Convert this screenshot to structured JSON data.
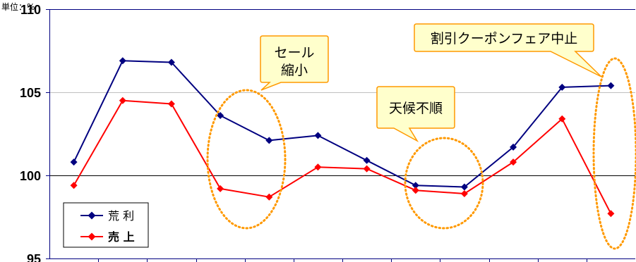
{
  "chart_data": {
    "type": "line",
    "unit_label": "単位：%",
    "x_count": 12,
    "ylim": [
      95,
      110
    ],
    "y_ticks": [
      110,
      105,
      100,
      95
    ],
    "reference_line": 100,
    "grid": true,
    "legend_position": "bottom-left",
    "series": [
      {
        "name": "荒 利",
        "color": "#000080",
        "marker": "diamond",
        "values": [
          100.8,
          106.9,
          106.8,
          103.6,
          102.1,
          102.4,
          100.9,
          99.4,
          99.3,
          101.7,
          105.3,
          105.4
        ]
      },
      {
        "name": "売 上",
        "color": "#ff0000",
        "marker": "diamond",
        "values": [
          99.4,
          104.5,
          104.3,
          99.2,
          98.7,
          100.5,
          100.4,
          99.1,
          98.9,
          100.8,
          103.4,
          97.7
        ]
      }
    ],
    "annotations": [
      {
        "text_lines": [
          "セール",
          "縮小"
        ]
      },
      {
        "text_lines": [
          "天候不順"
        ]
      },
      {
        "text_lines": [
          "割引クーポンフェア中止"
        ]
      }
    ]
  },
  "colors": {
    "callout_fill": "#ffffcc",
    "callout_stroke": "#ff9900",
    "highlight_ellipse": "#ff9900",
    "axis": "#000080",
    "grid": "#c0c0c0",
    "reference_line": "#000000"
  }
}
